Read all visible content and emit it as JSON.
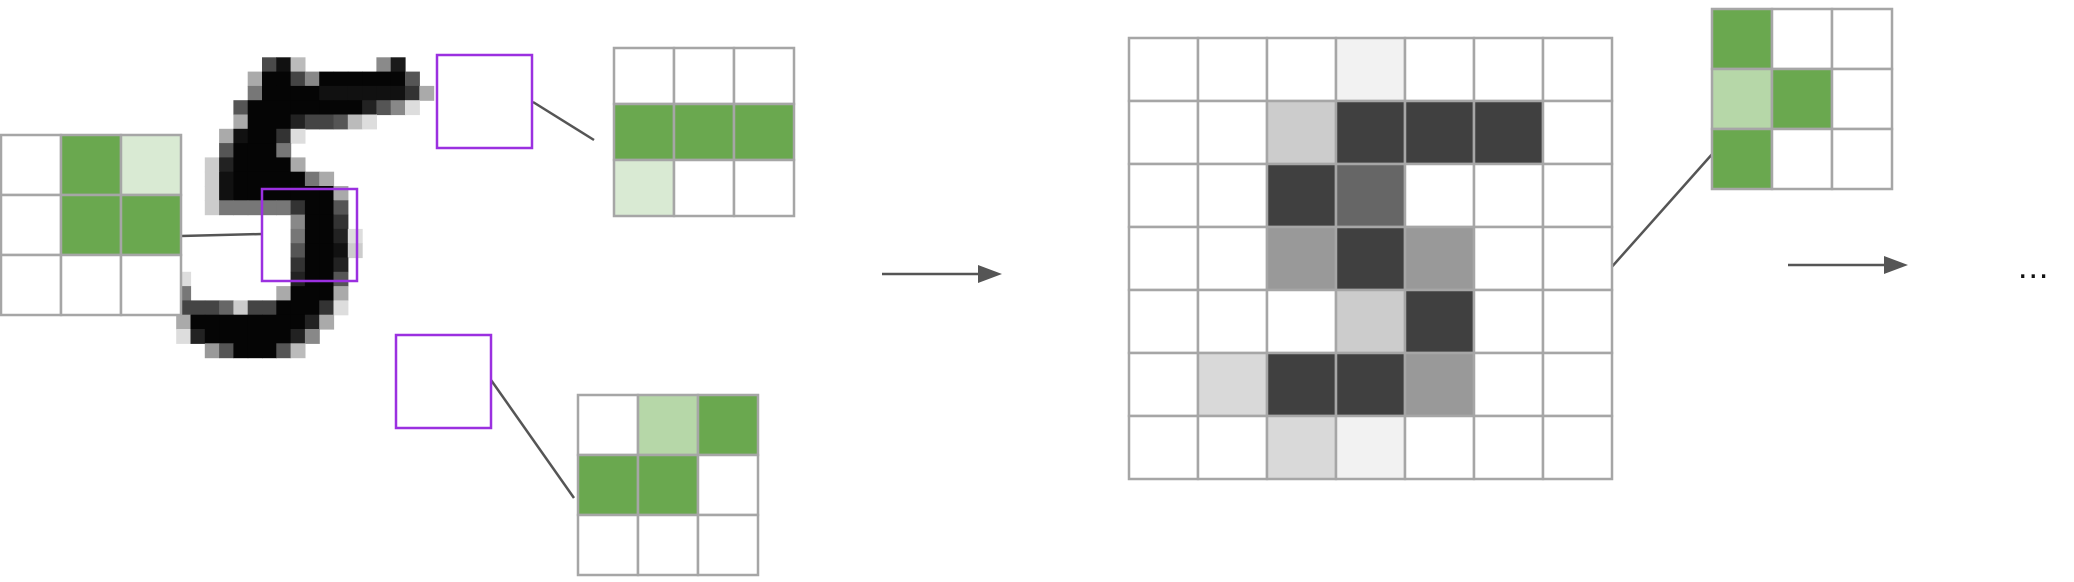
{
  "diagram": {
    "ellipsis_text": "...",
    "colors": {
      "grid_line": "#a6a6a6",
      "window_outline": "#9b30e0",
      "connector": "#555555",
      "arrow": "#555555",
      "cell_empty": "#ffffff",
      "green_strong": "#6aa84f",
      "green_mid": "#b6d7a8",
      "green_light": "#d9ead3"
    },
    "digit_image": {
      "description_hidden": true,
      "pixels": [
        [
          20,
          1,
          255,
          "#4a4a4a"
        ],
        [
          21,
          1,
          255,
          "#111111"
        ],
        [
          22,
          1,
          255,
          "#bbbbbb"
        ],
        [
          28,
          1,
          255,
          "#8a8a8a"
        ],
        [
          29,
          1,
          255,
          "#1a1a1a"
        ],
        [
          19,
          2,
          255,
          "#aaaaaa"
        ],
        [
          20,
          2,
          255,
          "#050505"
        ],
        [
          21,
          2,
          255,
          "#050505"
        ],
        [
          22,
          2,
          255,
          "#444444"
        ],
        [
          23,
          2,
          255,
          "#888888"
        ],
        [
          24,
          2,
          255,
          "#050505"
        ],
        [
          25,
          2,
          255,
          "#050505"
        ],
        [
          26,
          2,
          255,
          "#050505"
        ],
        [
          27,
          2,
          255,
          "#050505"
        ],
        [
          28,
          2,
          255,
          "#050505"
        ],
        [
          29,
          2,
          255,
          "#050505"
        ],
        [
          30,
          2,
          255,
          "#555555"
        ],
        [
          19,
          3,
          255,
          "#777777"
        ],
        [
          20,
          3,
          255,
          "#050505"
        ],
        [
          21,
          3,
          255,
          "#050505"
        ],
        [
          22,
          3,
          255,
          "#050505"
        ],
        [
          23,
          3,
          255,
          "#050505"
        ],
        [
          24,
          3,
          255,
          "#111111"
        ],
        [
          25,
          3,
          255,
          "#111111"
        ],
        [
          26,
          3,
          255,
          "#111111"
        ],
        [
          27,
          3,
          255,
          "#111111"
        ],
        [
          28,
          3,
          255,
          "#111111"
        ],
        [
          29,
          3,
          255,
          "#111111"
        ],
        [
          30,
          3,
          255,
          "#333333"
        ],
        [
          31,
          3,
          255,
          "#aaaaaa"
        ],
        [
          18,
          4,
          255,
          "#555555"
        ],
        [
          19,
          4,
          255,
          "#050505"
        ],
        [
          20,
          4,
          255,
          "#050505"
        ],
        [
          21,
          4,
          255,
          "#050505"
        ],
        [
          22,
          4,
          255,
          "#050505"
        ],
        [
          23,
          4,
          255,
          "#050505"
        ],
        [
          24,
          4,
          255,
          "#050505"
        ],
        [
          25,
          4,
          255,
          "#050505"
        ],
        [
          26,
          4,
          255,
          "#050505"
        ],
        [
          27,
          4,
          255,
          "#222222"
        ],
        [
          28,
          4,
          255,
          "#555555"
        ],
        [
          29,
          4,
          255,
          "#888888"
        ],
        [
          30,
          4,
          255,
          "#dddddd"
        ],
        [
          18,
          5,
          255,
          "#aaaaaa"
        ],
        [
          19,
          5,
          255,
          "#050505"
        ],
        [
          20,
          5,
          255,
          "#050505"
        ],
        [
          21,
          5,
          255,
          "#050505"
        ],
        [
          22,
          5,
          255,
          "#222222"
        ],
        [
          23,
          5,
          255,
          "#444444"
        ],
        [
          24,
          5,
          255,
          "#444444"
        ],
        [
          25,
          5,
          255,
          "#555555"
        ],
        [
          26,
          5,
          255,
          "#bbbbbb"
        ],
        [
          27,
          5,
          255,
          "#dddddd"
        ],
        [
          17,
          6,
          255,
          "#aaaaaa"
        ],
        [
          18,
          6,
          255,
          "#111111"
        ],
        [
          19,
          6,
          255,
          "#050505"
        ],
        [
          20,
          6,
          255,
          "#050505"
        ],
        [
          21,
          6,
          255,
          "#333333"
        ],
        [
          22,
          6,
          255,
          "#dddddd"
        ],
        [
          17,
          7,
          255,
          "#555555"
        ],
        [
          18,
          7,
          255,
          "#050505"
        ],
        [
          19,
          7,
          255,
          "#050505"
        ],
        [
          20,
          7,
          255,
          "#050505"
        ],
        [
          21,
          7,
          255,
          "#777777"
        ],
        [
          16,
          8,
          255,
          "#cccccc"
        ],
        [
          17,
          8,
          255,
          "#222222"
        ],
        [
          18,
          8,
          255,
          "#050505"
        ],
        [
          19,
          8,
          255,
          "#050505"
        ],
        [
          20,
          8,
          255,
          "#050505"
        ],
        [
          21,
          8,
          255,
          "#050505"
        ],
        [
          22,
          8,
          255,
          "#aaaaaa"
        ],
        [
          16,
          9,
          255,
          "#cccccc"
        ],
        [
          17,
          9,
          255,
          "#111111"
        ],
        [
          18,
          9,
          255,
          "#050505"
        ],
        [
          19,
          9,
          255,
          "#050505"
        ],
        [
          20,
          9,
          255,
          "#050505"
        ],
        [
          21,
          9,
          255,
          "#050505"
        ],
        [
          22,
          9,
          255,
          "#050505"
        ],
        [
          23,
          9,
          255,
          "#777777"
        ],
        [
          24,
          9,
          255,
          "#aaaaaa"
        ],
        [
          16,
          10,
          255,
          "#cccccc"
        ],
        [
          17,
          10,
          255,
          "#111111"
        ],
        [
          18,
          10,
          255,
          "#050505"
        ],
        [
          19,
          10,
          255,
          "#050505"
        ],
        [
          20,
          10,
          255,
          "#050505"
        ],
        [
          21,
          10,
          255,
          "#050505"
        ],
        [
          22,
          10,
          255,
          "#050505"
        ],
        [
          23,
          10,
          255,
          "#050505"
        ],
        [
          24,
          10,
          255,
          "#050505"
        ],
        [
          25,
          10,
          255,
          "#aaaaaa"
        ],
        [
          16,
          11,
          255,
          "#cccccc"
        ],
        [
          17,
          11,
          255,
          "#777777"
        ],
        [
          18,
          11,
          255,
          "#777777"
        ],
        [
          19,
          11,
          255,
          "#777777"
        ],
        [
          20,
          11,
          255,
          "#777777"
        ],
        [
          21,
          11,
          255,
          "#777777"
        ],
        [
          22,
          11,
          255,
          "#333333"
        ],
        [
          23,
          11,
          255,
          "#050505"
        ],
        [
          24,
          11,
          255,
          "#050505"
        ],
        [
          25,
          11,
          255,
          "#555555"
        ],
        [
          22,
          12,
          255,
          "#888888"
        ],
        [
          23,
          12,
          255,
          "#050505"
        ],
        [
          24,
          12,
          255,
          "#050505"
        ],
        [
          25,
          12,
          255,
          "#333333"
        ],
        [
          22,
          13,
          255,
          "#777777"
        ],
        [
          23,
          13,
          255,
          "#050505"
        ],
        [
          24,
          13,
          255,
          "#050505"
        ],
        [
          25,
          13,
          255,
          "#222222"
        ],
        [
          26,
          13,
          255,
          "#dddddd"
        ],
        [
          22,
          14,
          255,
          "#555555"
        ],
        [
          23,
          14,
          255,
          "#050505"
        ],
        [
          24,
          14,
          255,
          "#050505"
        ],
        [
          25,
          14,
          255,
          "#111111"
        ],
        [
          26,
          14,
          255,
          "#cccccc"
        ],
        [
          22,
          15,
          255,
          "#333333"
        ],
        [
          23,
          15,
          255,
          "#050505"
        ],
        [
          24,
          15,
          255,
          "#050505"
        ],
        [
          25,
          15,
          255,
          "#222222"
        ],
        [
          14,
          16,
          255,
          "#dddddd"
        ],
        [
          22,
          16,
          255,
          "#222222"
        ],
        [
          23,
          16,
          255,
          "#050505"
        ],
        [
          24,
          16,
          255,
          "#050505"
        ],
        [
          25,
          16,
          255,
          "#555555"
        ],
        [
          13,
          17,
          255,
          "#999999"
        ],
        [
          14,
          17,
          255,
          "#777777"
        ],
        [
          21,
          17,
          255,
          "#aaaaaa"
        ],
        [
          22,
          17,
          255,
          "#050505"
        ],
        [
          23,
          17,
          255,
          "#050505"
        ],
        [
          24,
          17,
          255,
          "#050505"
        ],
        [
          25,
          17,
          255,
          "#aaaaaa"
        ],
        [
          13,
          18,
          255,
          "#777777"
        ],
        [
          14,
          18,
          255,
          "#444444"
        ],
        [
          15,
          18,
          255,
          "#444444"
        ],
        [
          16,
          18,
          255,
          "#444444"
        ],
        [
          17,
          18,
          255,
          "#666666"
        ],
        [
          18,
          18,
          255,
          "#cccccc"
        ],
        [
          19,
          18,
          255,
          "#444444"
        ],
        [
          20,
          18,
          255,
          "#444444"
        ],
        [
          21,
          18,
          255,
          "#050505"
        ],
        [
          22,
          18,
          255,
          "#050505"
        ],
        [
          23,
          18,
          255,
          "#050505"
        ],
        [
          24,
          18,
          255,
          "#333333"
        ],
        [
          25,
          18,
          255,
          "#dddddd"
        ],
        [
          14,
          19,
          255,
          "#aaaaaa"
        ],
        [
          15,
          19,
          255,
          "#050505"
        ],
        [
          16,
          19,
          255,
          "#050505"
        ],
        [
          17,
          19,
          255,
          "#050505"
        ],
        [
          18,
          19,
          255,
          "#050505"
        ],
        [
          19,
          19,
          255,
          "#050505"
        ],
        [
          20,
          19,
          255,
          "#050505"
        ],
        [
          21,
          19,
          255,
          "#050505"
        ],
        [
          22,
          19,
          255,
          "#050505"
        ],
        [
          23,
          19,
          255,
          "#222222"
        ],
        [
          24,
          19,
          255,
          "#aaaaaa"
        ],
        [
          14,
          20,
          255,
          "#dddddd"
        ],
        [
          15,
          20,
          255,
          "#222222"
        ],
        [
          16,
          20,
          255,
          "#050505"
        ],
        [
          17,
          20,
          255,
          "#050505"
        ],
        [
          18,
          20,
          255,
          "#050505"
        ],
        [
          19,
          20,
          255,
          "#050505"
        ],
        [
          20,
          20,
          255,
          "#050505"
        ],
        [
          21,
          20,
          255,
          "#050505"
        ],
        [
          22,
          20,
          255,
          "#222222"
        ],
        [
          23,
          20,
          255,
          "#888888"
        ],
        [
          16,
          21,
          255,
          "#999999"
        ],
        [
          17,
          21,
          255,
          "#555555"
        ],
        [
          18,
          21,
          255,
          "#050505"
        ],
        [
          19,
          21,
          255,
          "#050505"
        ],
        [
          20,
          21,
          255,
          "#050505"
        ],
        [
          21,
          21,
          255,
          "#555555"
        ],
        [
          22,
          21,
          255,
          "#bbbbbb"
        ]
      ]
    },
    "kernel_left": {
      "cells": [
        "#ffffff",
        "#6aa84f",
        "#d9ead3",
        "#ffffff",
        "#6aa84f",
        "#6aa84f",
        "#ffffff",
        "#ffffff",
        "#ffffff"
      ]
    },
    "kernel_top": {
      "cells": [
        "#ffffff",
        "#ffffff",
        "#ffffff",
        "#6aa84f",
        "#6aa84f",
        "#6aa84f",
        "#d9ead3",
        "#ffffff",
        "#ffffff"
      ]
    },
    "kernel_bottom": {
      "cells": [
        "#ffffff",
        "#b6d7a8",
        "#6aa84f",
        "#6aa84f",
        "#6aa84f",
        "#ffffff",
        "#ffffff",
        "#ffffff",
        "#ffffff"
      ]
    },
    "kernel_right": {
      "cells": [
        "#6aa84f",
        "#ffffff",
        "#ffffff",
        "#b6d7a8",
        "#6aa84f",
        "#ffffff",
        "#6aa84f",
        "#ffffff",
        "#ffffff"
      ]
    },
    "feature_map": {
      "cells": [
        [
          "#ffffff",
          "#ffffff",
          "#ffffff",
          "#f2f2f2",
          "#ffffff",
          "#ffffff",
          "#ffffff"
        ],
        [
          "#ffffff",
          "#ffffff",
          "#cccccc",
          "#404040",
          "#404040",
          "#404040",
          "#ffffff"
        ],
        [
          "#ffffff",
          "#ffffff",
          "#404040",
          "#666666",
          "#ffffff",
          "#ffffff",
          "#ffffff"
        ],
        [
          "#ffffff",
          "#ffffff",
          "#999999",
          "#404040",
          "#999999",
          "#ffffff",
          "#ffffff"
        ],
        [
          "#ffffff",
          "#ffffff",
          "#ffffff",
          "#cccccc",
          "#404040",
          "#ffffff",
          "#ffffff"
        ],
        [
          "#ffffff",
          "#d9d9d9",
          "#404040",
          "#404040",
          "#999999",
          "#ffffff",
          "#ffffff"
        ],
        [
          "#ffffff",
          "#ffffff",
          "#d9d9d9",
          "#f2f2f2",
          "#ffffff",
          "#ffffff",
          "#ffffff"
        ]
      ]
    }
  }
}
